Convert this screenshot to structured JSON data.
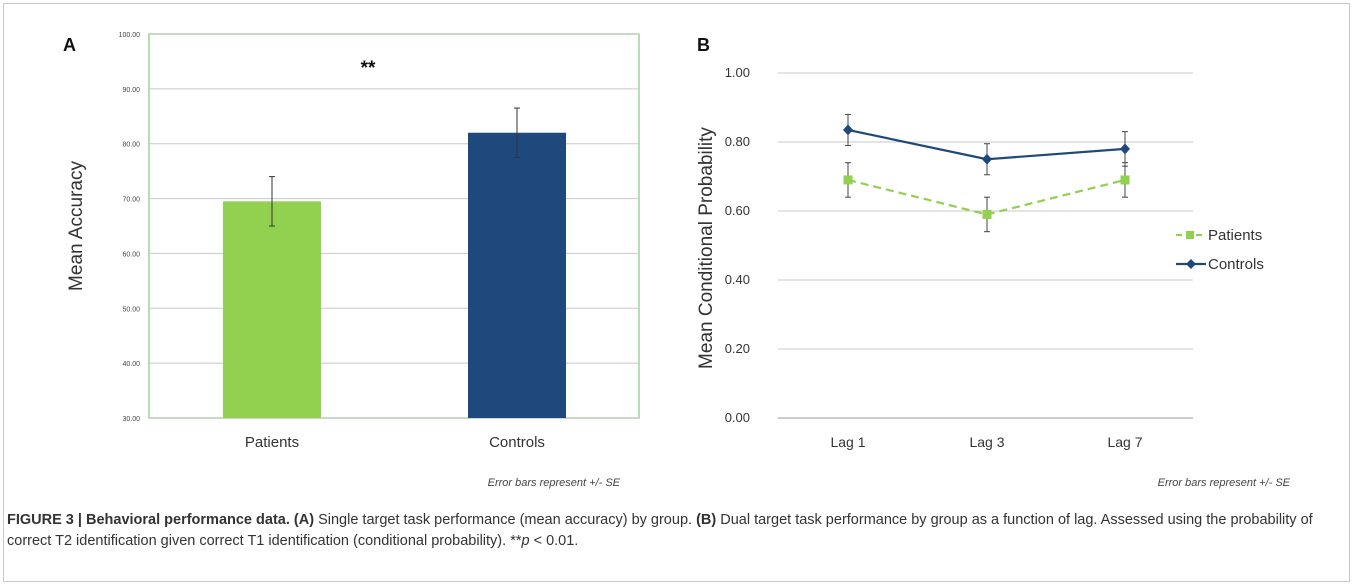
{
  "caption": {
    "figure_label": "FIGURE 3 | Behavioral performance data.",
    "a_ref": "(A)",
    "a_text": " Single target task performance (mean accuracy) by group. ",
    "b_ref": "(B)",
    "b_text": " Dual target task performance by group as a function of lag. Assessed using the probability of correct T2 identification given correct T1 identification (conditional probability). **",
    "p_symbol": "p",
    "p_rest": " < 0.01."
  },
  "colors": {
    "patients": "#92d050",
    "controls": "#1f497d",
    "panel_a_border": "#9bd39b",
    "gridline": "#c8c8c8"
  },
  "chart_data": [
    {
      "panel": "A",
      "type": "bar",
      "categories": [
        "Patients",
        "Controls"
      ],
      "values": [
        69.5,
        82.0
      ],
      "error": [
        4.5,
        4.5
      ],
      "ylabel": "Mean Accuracy",
      "ylim": [
        30,
        100
      ],
      "yticks": [
        "30.00",
        "40.00",
        "50.00",
        "60.00",
        "70.00",
        "80.00",
        "90.00",
        "100.00"
      ],
      "grid": true,
      "annotation": "**",
      "note": "Error bars represent +/- SE"
    },
    {
      "panel": "B",
      "type": "line",
      "x": [
        "Lag 1",
        "Lag 3",
        "Lag 7"
      ],
      "series": [
        {
          "name": "Patients",
          "values": [
            0.69,
            0.59,
            0.69
          ],
          "error": [
            0.05,
            0.05,
            0.05
          ],
          "style": "dashed",
          "marker": "square"
        },
        {
          "name": "Controls",
          "values": [
            0.835,
            0.75,
            0.78
          ],
          "error": [
            0.045,
            0.045,
            0.05
          ],
          "style": "solid",
          "marker": "diamond"
        }
      ],
      "ylabel": "Mean Conditional Probability",
      "ylim": [
        0,
        1
      ],
      "yticks": [
        "0.00",
        "0.20",
        "0.40",
        "0.60",
        "0.80",
        "1.00"
      ],
      "grid": true,
      "legend_position": "right",
      "note": "Error bars represent +/- SE"
    }
  ]
}
